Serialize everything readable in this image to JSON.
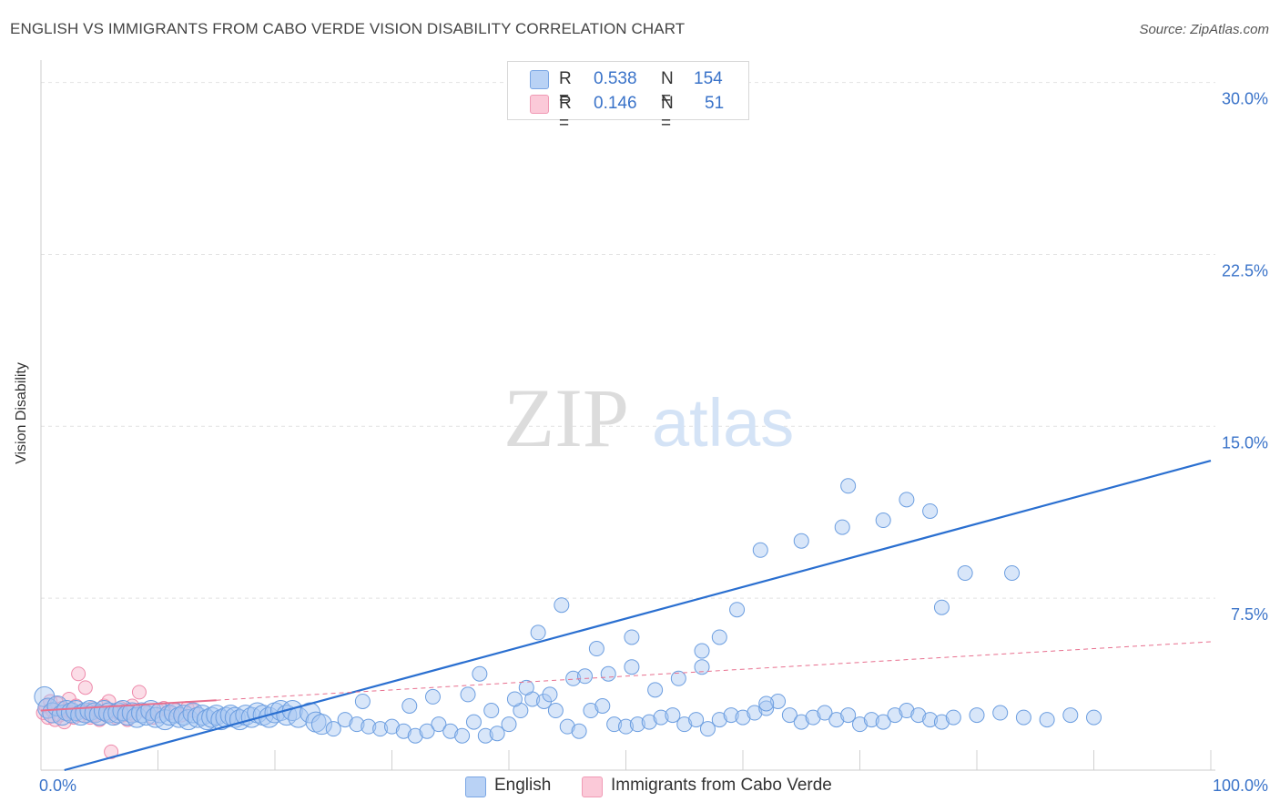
{
  "title": "ENGLISH VS IMMIGRANTS FROM CABO VERDE VISION DISABILITY CORRELATION CHART",
  "source": "Source: ZipAtlas.com",
  "watermark": {
    "zip": "ZIP",
    "atlas": "atlas"
  },
  "colors": {
    "blue": "#6fa3e8",
    "blue_line": "#2a6fd0",
    "pink": "#f08fb0",
    "pink_line": "#e8708f",
    "tick_text": "#3a73c9"
  },
  "legend": {
    "rows": [
      {
        "r_label": "R =",
        "r_value": "0.538",
        "n_label": "N =",
        "n_value": "154"
      },
      {
        "r_label": "R =",
        "r_value": "0.146",
        "n_label": "N =",
        "n_value": "51"
      }
    ]
  },
  "chart_data": {
    "type": "scatter",
    "xlabel": "",
    "ylabel": "Vision Disability",
    "x_tick_labels": [
      "0.0%",
      "100.0%"
    ],
    "y_tick_labels": [
      "7.5%",
      "15.0%",
      "22.5%",
      "30.0%"
    ],
    "xlim": [
      0,
      100
    ],
    "ylim": [
      0,
      30.5
    ],
    "grid": true,
    "legend_position": "bottom",
    "series": [
      {
        "name": "English",
        "color": "#6fa3e8",
        "trend": {
          "x": [
            2,
            100
          ],
          "y": [
            0.0,
            13.5
          ]
        },
        "points": [
          [
            0.3,
            3.2
          ],
          [
            0.6,
            2.7
          ],
          [
            1.0,
            2.5
          ],
          [
            1.4,
            2.8
          ],
          [
            1.8,
            2.4
          ],
          [
            2.2,
            2.6
          ],
          [
            2.6,
            2.5
          ],
          [
            3.0,
            2.6
          ],
          [
            3.4,
            2.4
          ],
          [
            3.8,
            2.5
          ],
          [
            4.2,
            2.6
          ],
          [
            4.6,
            2.5
          ],
          [
            5.0,
            2.4
          ],
          [
            5.4,
            2.6
          ],
          [
            5.8,
            2.5
          ],
          [
            6.2,
            2.4
          ],
          [
            6.6,
            2.5
          ],
          [
            7.0,
            2.6
          ],
          [
            7.4,
            2.4
          ],
          [
            7.8,
            2.5
          ],
          [
            8.2,
            2.3
          ],
          [
            8.6,
            2.5
          ],
          [
            9.0,
            2.4
          ],
          [
            9.4,
            2.6
          ],
          [
            9.8,
            2.3
          ],
          [
            10.2,
            2.5
          ],
          [
            10.6,
            2.2
          ],
          [
            11.0,
            2.4
          ],
          [
            11.4,
            2.5
          ],
          [
            11.8,
            2.3
          ],
          [
            12.2,
            2.4
          ],
          [
            12.6,
            2.2
          ],
          [
            13.0,
            2.5
          ],
          [
            13.4,
            2.3
          ],
          [
            13.8,
            2.4
          ],
          [
            14.2,
            2.2
          ],
          [
            14.6,
            2.3
          ],
          [
            15.0,
            2.4
          ],
          [
            15.4,
            2.2
          ],
          [
            15.8,
            2.3
          ],
          [
            16.2,
            2.4
          ],
          [
            16.6,
            2.3
          ],
          [
            17.0,
            2.2
          ],
          [
            17.5,
            2.4
          ],
          [
            18.0,
            2.3
          ],
          [
            18.5,
            2.5
          ],
          [
            19.0,
            2.4
          ],
          [
            19.5,
            2.3
          ],
          [
            20.0,
            2.5
          ],
          [
            20.5,
            2.6
          ],
          [
            21.0,
            2.4
          ],
          [
            21.5,
            2.6
          ],
          [
            22.0,
            2.3
          ],
          [
            23.0,
            2.5
          ],
          [
            23.5,
            2.1
          ],
          [
            24.0,
            2.0
          ],
          [
            25.0,
            1.8
          ],
          [
            26.0,
            2.2
          ],
          [
            27.0,
            2.0
          ],
          [
            28.0,
            1.9
          ],
          [
            29.0,
            1.8
          ],
          [
            30.0,
            1.9
          ],
          [
            31.0,
            1.7
          ],
          [
            32.0,
            1.5
          ],
          [
            33.0,
            1.7
          ],
          [
            34.0,
            2.0
          ],
          [
            35.0,
            1.7
          ],
          [
            36.0,
            1.5
          ],
          [
            37.0,
            2.1
          ],
          [
            38.0,
            1.5
          ],
          [
            39.0,
            1.6
          ],
          [
            40.0,
            2.0
          ],
          [
            41.0,
            2.6
          ],
          [
            42.0,
            3.1
          ],
          [
            43.0,
            3.0
          ],
          [
            44.0,
            2.6
          ],
          [
            45.0,
            1.9
          ],
          [
            46.0,
            1.7
          ],
          [
            47.0,
            2.6
          ],
          [
            48.0,
            2.8
          ],
          [
            49.0,
            2.0
          ],
          [
            50.0,
            1.9
          ],
          [
            51.0,
            2.0
          ],
          [
            52.0,
            2.1
          ],
          [
            53.0,
            2.3
          ],
          [
            54.0,
            2.4
          ],
          [
            55.0,
            2.0
          ],
          [
            56.0,
            2.2
          ],
          [
            57.0,
            1.8
          ],
          [
            58.0,
            2.2
          ],
          [
            59.0,
            2.4
          ],
          [
            60.0,
            2.3
          ],
          [
            61.0,
            2.5
          ],
          [
            62.0,
            2.7
          ],
          [
            63.0,
            3.0
          ],
          [
            64.0,
            2.4
          ],
          [
            65.0,
            2.1
          ],
          [
            66.0,
            2.3
          ],
          [
            67.0,
            2.5
          ],
          [
            68.0,
            2.2
          ],
          [
            69.0,
            2.4
          ],
          [
            70.0,
            2.0
          ],
          [
            71.0,
            2.2
          ],
          [
            72.0,
            2.1
          ],
          [
            73.0,
            2.4
          ],
          [
            74.0,
            2.6
          ],
          [
            75.0,
            2.4
          ],
          [
            76.0,
            2.2
          ],
          [
            77.0,
            2.1
          ],
          [
            78.0,
            2.3
          ],
          [
            80.0,
            2.4
          ],
          [
            82.0,
            2.5
          ],
          [
            84.0,
            2.3
          ],
          [
            86.0,
            2.2
          ],
          [
            88.0,
            2.4
          ],
          [
            90.0,
            2.3
          ],
          [
            27.5,
            3.0
          ],
          [
            31.5,
            2.8
          ],
          [
            33.5,
            3.2
          ],
          [
            36.5,
            3.3
          ],
          [
            38.5,
            2.6
          ],
          [
            40.5,
            3.1
          ],
          [
            43.5,
            3.3
          ],
          [
            45.5,
            4.0
          ],
          [
            46.5,
            4.1
          ],
          [
            48.5,
            4.2
          ],
          [
            50.5,
            4.5
          ],
          [
            52.5,
            3.5
          ],
          [
            54.5,
            4.0
          ],
          [
            56.5,
            4.5
          ],
          [
            37.5,
            4.2
          ],
          [
            41.5,
            3.6
          ],
          [
            42.5,
            6.0
          ],
          [
            44.5,
            7.2
          ],
          [
            47.5,
            5.3
          ],
          [
            50.5,
            5.8
          ],
          [
            56.5,
            5.2
          ],
          [
            58.0,
            5.8
          ],
          [
            59.5,
            7.0
          ],
          [
            62.0,
            2.9
          ],
          [
            61.5,
            9.6
          ],
          [
            65.0,
            10.0
          ],
          [
            68.5,
            10.6
          ],
          [
            69.0,
            12.4
          ],
          [
            72.0,
            10.9
          ],
          [
            74.0,
            11.8
          ],
          [
            76.0,
            11.3
          ],
          [
            77.0,
            7.1
          ],
          [
            79.0,
            8.6
          ],
          [
            83.0,
            8.6
          ]
        ]
      },
      {
        "name": "Immigrants from Cabo Verde",
        "color": "#f08fb0",
        "trend": {
          "x": [
            0,
            100
          ],
          "y": [
            2.6,
            5.6
          ]
        },
        "points": [
          [
            0.2,
            2.5
          ],
          [
            0.4,
            2.8
          ],
          [
            0.6,
            2.3
          ],
          [
            0.8,
            3.0
          ],
          [
            1.0,
            2.6
          ],
          [
            1.2,
            2.2
          ],
          [
            1.4,
            2.9
          ],
          [
            1.6,
            2.4
          ],
          [
            1.8,
            2.7
          ],
          [
            2.0,
            2.1
          ],
          [
            2.2,
            2.6
          ],
          [
            2.4,
            3.1
          ],
          [
            2.6,
            2.5
          ],
          [
            2.8,
            2.3
          ],
          [
            3.0,
            2.8
          ],
          [
            3.2,
            4.2
          ],
          [
            3.4,
            2.4
          ],
          [
            3.6,
            2.6
          ],
          [
            3.8,
            3.6
          ],
          [
            4.0,
            2.5
          ],
          [
            4.2,
            2.3
          ],
          [
            4.4,
            2.7
          ],
          [
            4.6,
            2.4
          ],
          [
            4.8,
            2.6
          ],
          [
            5.0,
            2.2
          ],
          [
            5.2,
            2.5
          ],
          [
            5.4,
            2.8
          ],
          [
            5.6,
            2.4
          ],
          [
            5.8,
            3.0
          ],
          [
            6.0,
            0.8
          ],
          [
            6.2,
            2.6
          ],
          [
            6.4,
            2.3
          ],
          [
            6.6,
            2.5
          ],
          [
            6.8,
            2.7
          ],
          [
            7.0,
            2.4
          ],
          [
            7.2,
            2.6
          ],
          [
            7.4,
            2.2
          ],
          [
            7.6,
            2.5
          ],
          [
            7.8,
            2.8
          ],
          [
            8.0,
            2.4
          ],
          [
            8.4,
            3.4
          ],
          [
            8.8,
            2.6
          ],
          [
            9.2,
            2.5
          ],
          [
            9.6,
            2.3
          ],
          [
            10.0,
            2.6
          ],
          [
            10.5,
            2.7
          ],
          [
            11.0,
            2.5
          ],
          [
            11.5,
            2.6
          ],
          [
            12.0,
            2.4
          ],
          [
            12.5,
            2.7
          ],
          [
            13.0,
            2.6
          ]
        ]
      }
    ]
  },
  "bottom_legend": {
    "english": "English",
    "cabo_verde": "Immigrants from Cabo Verde"
  }
}
